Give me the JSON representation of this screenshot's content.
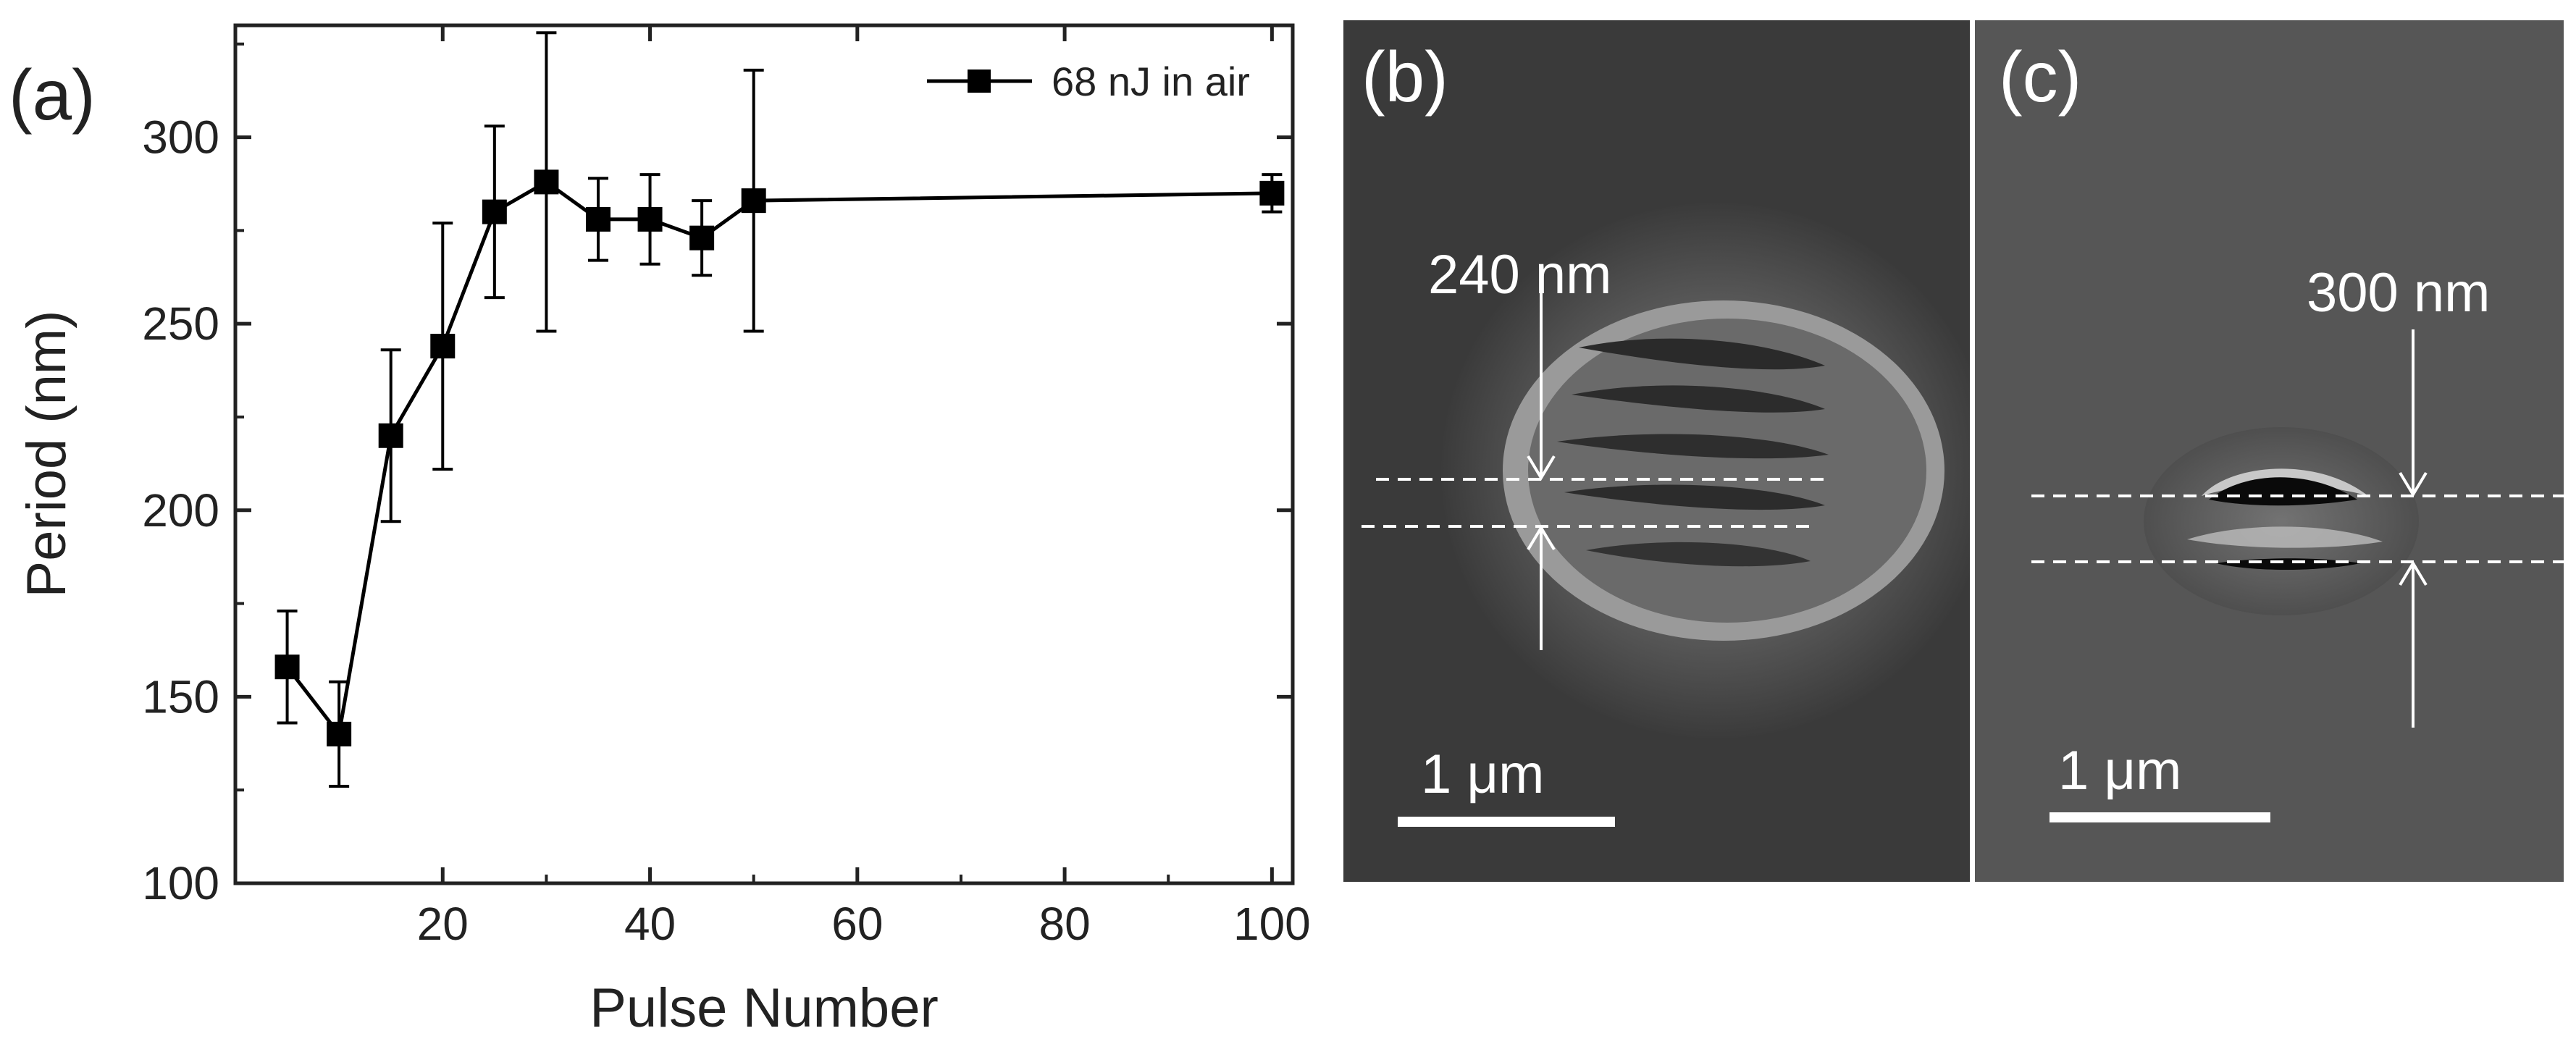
{
  "panels": {
    "a": {
      "label": "(a)"
    },
    "b": {
      "label": "(b)",
      "measure": "240 nm",
      "scalebar": "1 μm"
    },
    "c": {
      "label": "(c)",
      "measure": "300 nm",
      "scalebar": "1 μm"
    }
  },
  "chart_data": {
    "type": "scatter",
    "title": "",
    "xlabel": "Pulse Number",
    "ylabel": "Period (nm)",
    "xlim": [
      0,
      102
    ],
    "ylim": [
      100,
      330
    ],
    "xticks": [
      20,
      40,
      60,
      80,
      100
    ],
    "yticks": [
      100,
      150,
      200,
      250,
      300
    ],
    "grid": false,
    "legend_position": "top-right",
    "series": [
      {
        "name": "68 nJ in air",
        "marker": "square",
        "connected": true,
        "color": "#000000",
        "x": [
          5,
          10,
          15,
          20,
          25,
          30,
          35,
          40,
          45,
          50,
          100
        ],
        "y": [
          158,
          140,
          220,
          244,
          280,
          288,
          278,
          278,
          273,
          283,
          285
        ],
        "yerr": [
          15,
          14,
          23,
          33,
          23,
          40,
          11,
          12,
          10,
          35,
          5
        ]
      }
    ]
  }
}
